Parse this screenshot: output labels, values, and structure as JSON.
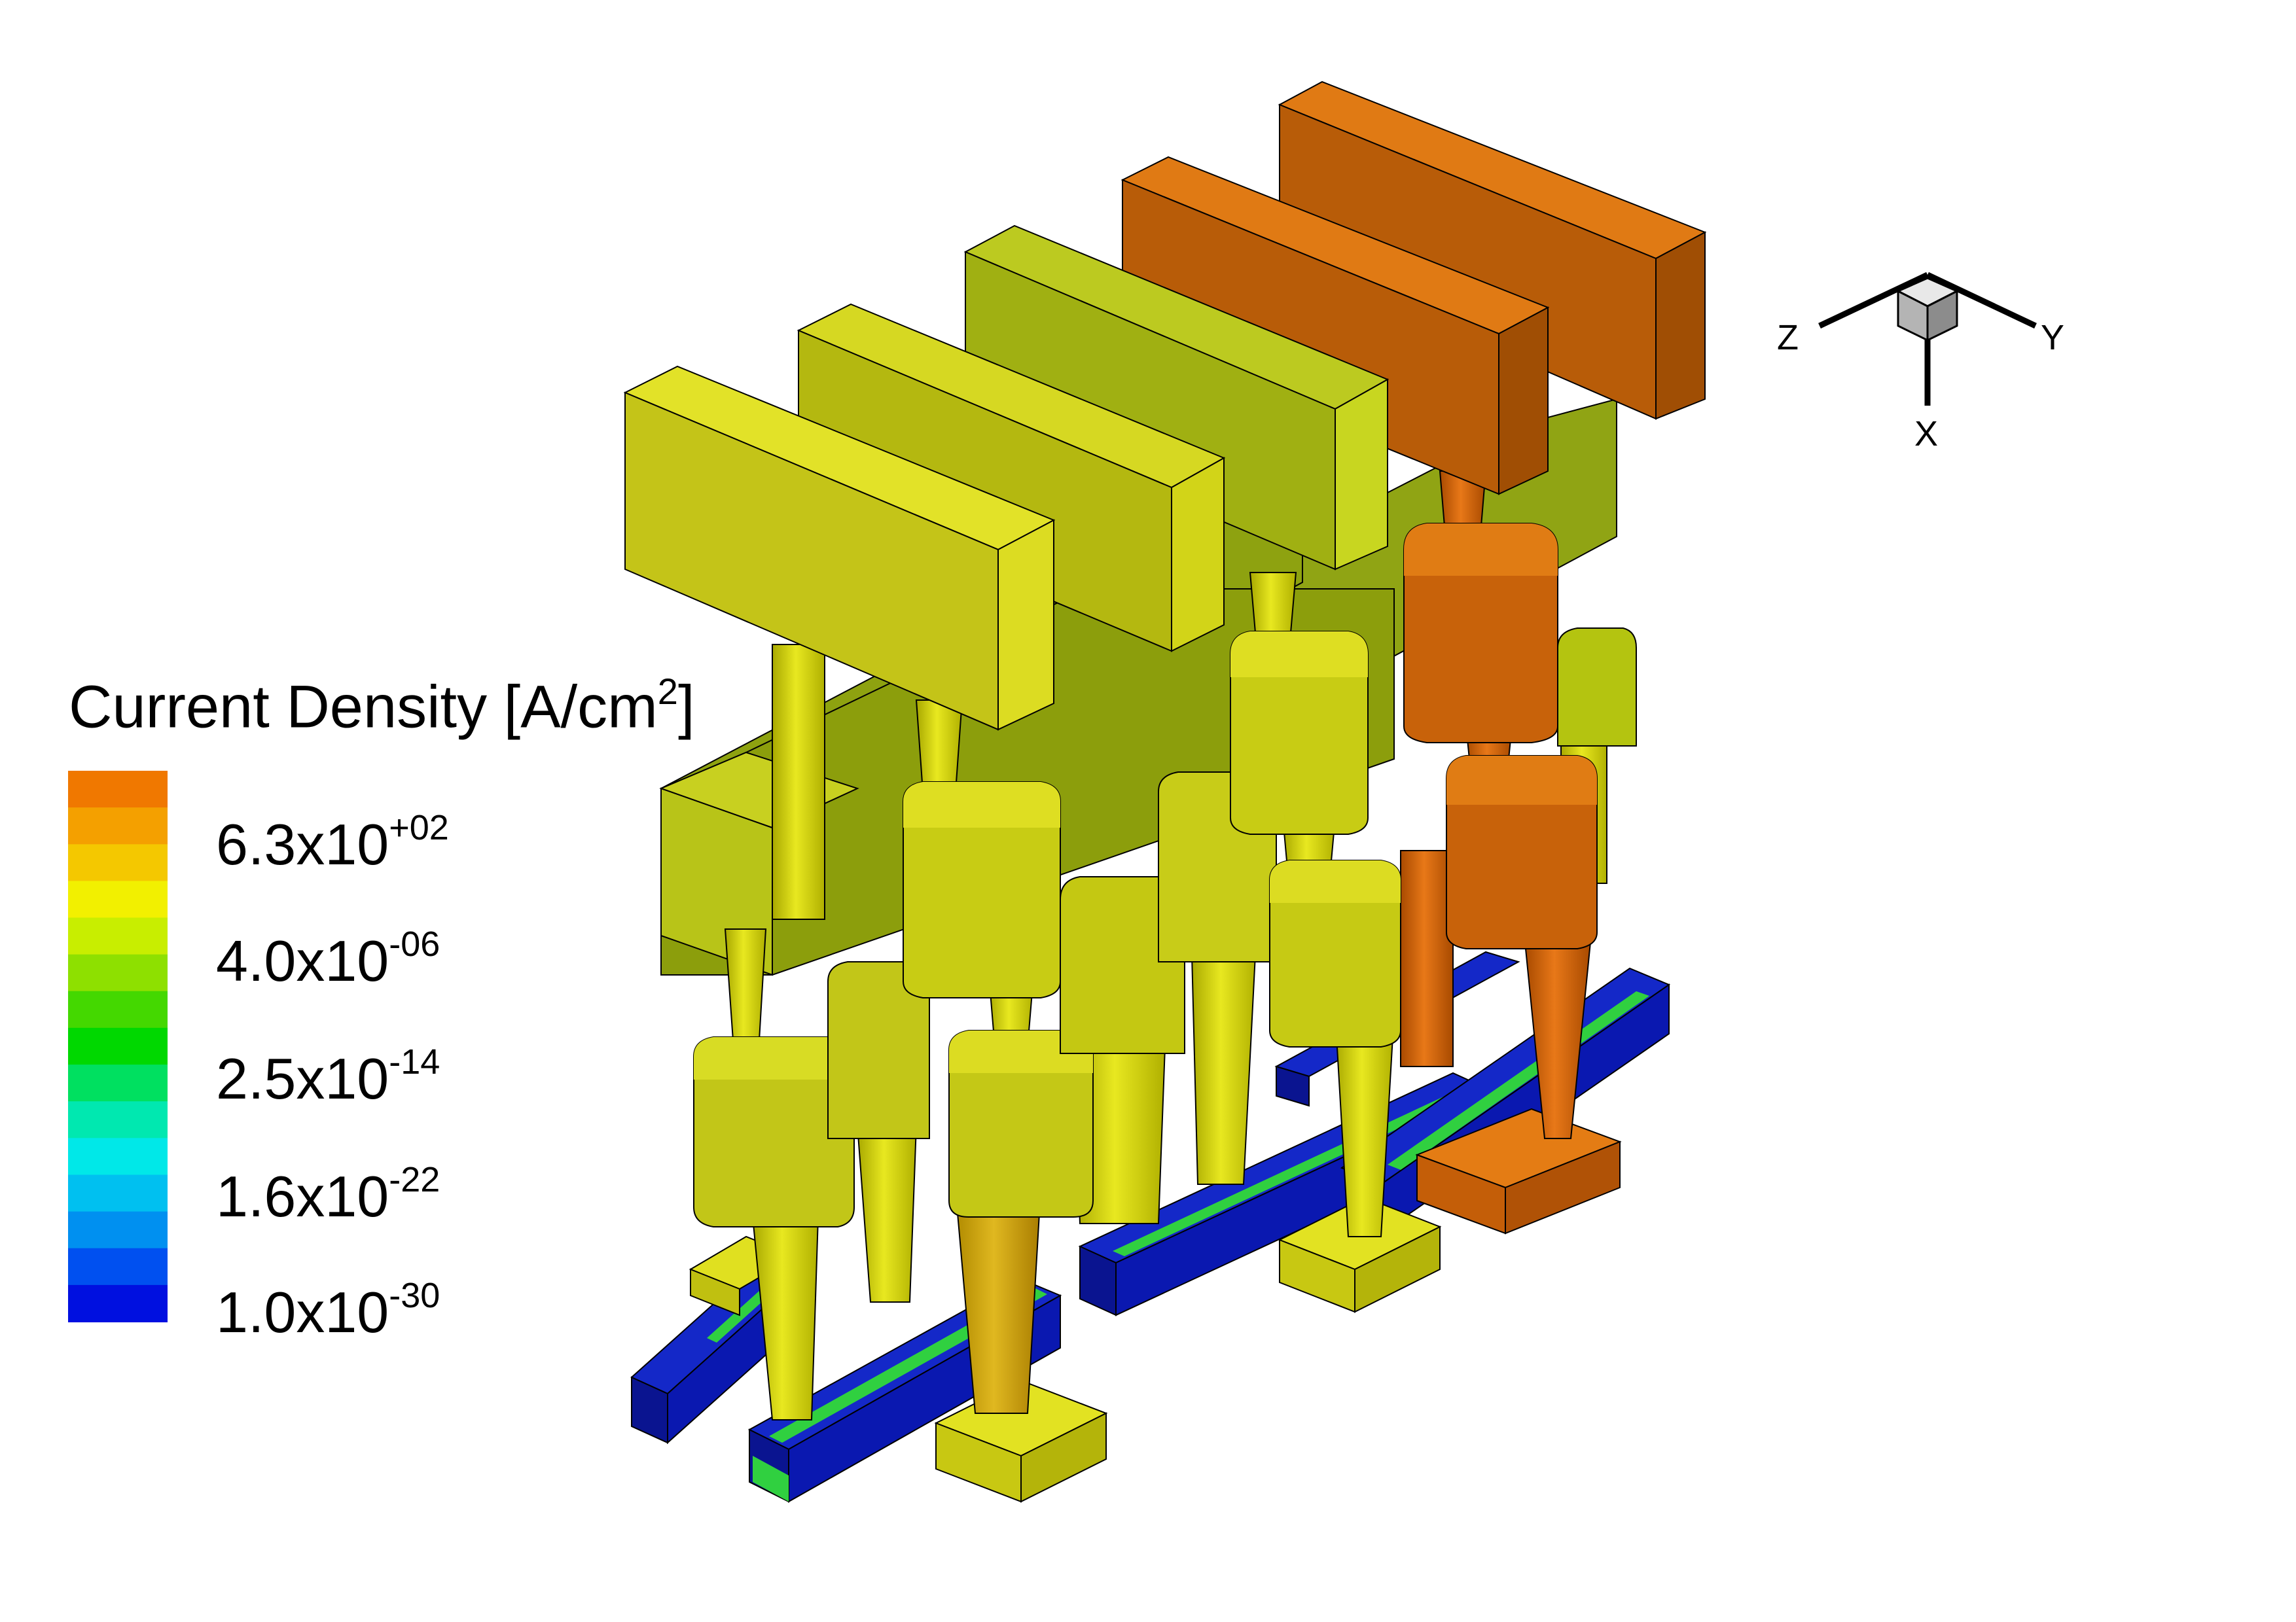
{
  "legend": {
    "title_main": "Current Density [A/cm",
    "title_exp": "2",
    "title_close": "]",
    "ticks": [
      {
        "mantissa": "6.3x10",
        "exponent": "+02"
      },
      {
        "mantissa": "4.0x10",
        "exponent": "-06"
      },
      {
        "mantissa": "2.5x10",
        "exponent": "-14"
      },
      {
        "mantissa": "1.6x10",
        "exponent": "-22"
      },
      {
        "mantissa": "1.0x10",
        "exponent": "-30"
      }
    ],
    "colors_top_to_bottom": [
      "#f07800",
      "#f4a000",
      "#f4c800",
      "#f2f000",
      "#c8ee00",
      "#8ee000",
      "#44d800",
      "#00d800",
      "#00e060",
      "#00e8b0",
      "#00e8e8",
      "#00c0f0",
      "#0090f0",
      "#0050f0",
      "#0010e0"
    ]
  },
  "orientation_axes": {
    "z": "Z",
    "y": "Y",
    "x": "X"
  },
  "colors": {
    "yellow_face": "#dede1a",
    "yellow_side": "#c2c210",
    "olive_face": "#a8b818",
    "olive_side": "#8a9a10",
    "orange_face": "#e07a10",
    "orange_side": "#b85c08",
    "blue_rail": "#0a1aa8",
    "green_strip": "#2ad44a"
  }
}
